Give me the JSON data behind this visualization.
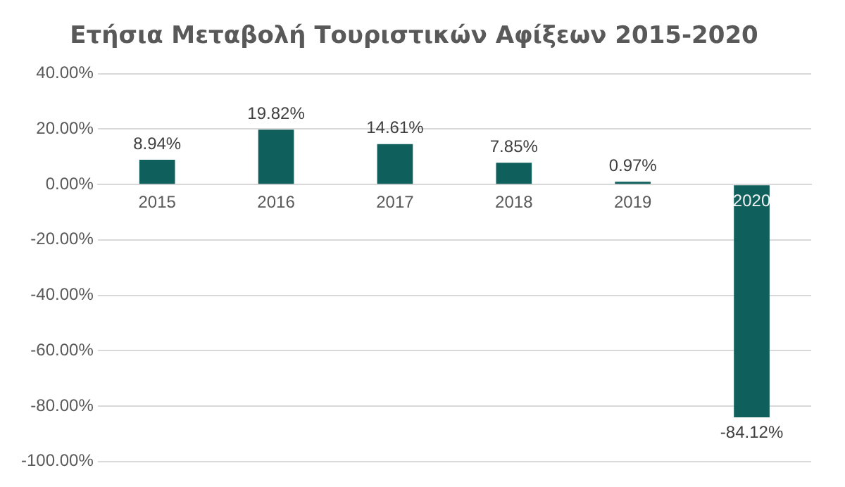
{
  "chart_data": {
    "type": "bar",
    "title": "Ετήσια Μεταβολή Τουριστικών Αφίξεων 2015-2020",
    "categories": [
      "2015",
      "2016",
      "2017",
      "2018",
      "2019",
      "2020"
    ],
    "series": [
      {
        "color": "#0f5f5c",
        "values": [
          8.94,
          19.82,
          14.61,
          7.85,
          0.97,
          -84.12
        ],
        "value_labels": [
          "8.94%",
          "19.82%",
          "14.61%",
          "7.85%",
          "0.97%",
          "-84.12%"
        ]
      }
    ],
    "ylim": [
      -100,
      40
    ],
    "yticks": [
      {
        "value": -100,
        "label": "-100.00%"
      },
      {
        "value": -80,
        "label": "-80.00%"
      },
      {
        "value": -60,
        "label": "-60.00%"
      },
      {
        "value": -40,
        "label": "-40.00%"
      },
      {
        "value": -20,
        "label": "-20.00%"
      },
      {
        "value": 0,
        "label": "0.00%"
      },
      {
        "value": 20,
        "label": "20.00%"
      },
      {
        "value": 40,
        "label": "40.00%"
      }
    ],
    "grid": "y",
    "legend": false
  }
}
